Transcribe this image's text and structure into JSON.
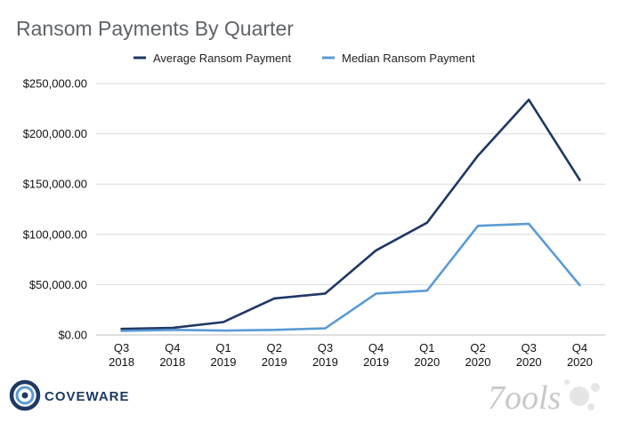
{
  "chart_data": {
    "type": "line",
    "title": "Ransom Payments By Quarter",
    "xlabel": "",
    "ylabel": "",
    "categories": [
      [
        "Q3",
        "2018"
      ],
      [
        "Q4",
        "2018"
      ],
      [
        "Q1",
        "2019"
      ],
      [
        "Q2",
        "2019"
      ],
      [
        "Q3",
        "2019"
      ],
      [
        "Q4",
        "2019"
      ],
      [
        "Q1",
        "2020"
      ],
      [
        "Q2",
        "2020"
      ],
      [
        "Q3",
        "2020"
      ],
      [
        "Q4",
        "2020"
      ]
    ],
    "ylim": [
      0,
      250000
    ],
    "yticks": [
      0,
      50000,
      100000,
      150000,
      200000,
      250000
    ],
    "ytick_labels": [
      "$0.00",
      "$50,000.00",
      "$100,000.00",
      "$150,000.00",
      "$200,000.00",
      "$250,000.00"
    ],
    "grid": true,
    "legend_position": "top-center",
    "series": [
      {
        "name": "Average Ransom Payment",
        "color": "#1f3864",
        "values": [
          6000,
          7000,
          12800,
          36300,
          41200,
          84100,
          111600,
          178300,
          233800,
          154100
        ]
      },
      {
        "name": "Median Ransom Payment",
        "color": "#5b9bd5",
        "values": [
          4000,
          5000,
          4300,
          5000,
          6500,
          41200,
          44000,
          108500,
          110500,
          49500
        ]
      }
    ]
  },
  "branding": {
    "logo_text": "COVEWARE",
    "logo_icon": "coveware-ring-icon",
    "watermark_text": "7ools",
    "logo_color": "#1f3864",
    "watermark_color": "#bfbfbf"
  }
}
